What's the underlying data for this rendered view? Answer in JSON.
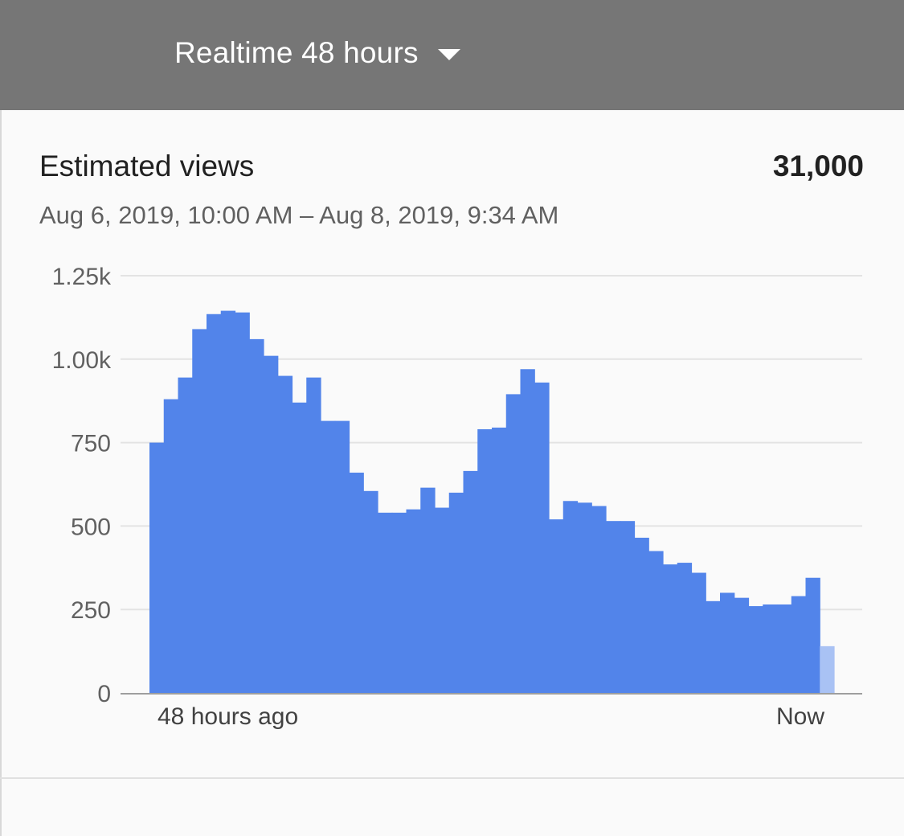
{
  "header": {
    "range_label": "Realtime 48 hours"
  },
  "card": {
    "title": "Estimated views",
    "total": "31,000",
    "date_range": "Aug 6, 2019, 10:00 AM – Aug 8, 2019, 9:34 AM"
  },
  "colors": {
    "header_bg": "#767676",
    "bar": "#5284ea",
    "bar_partial": "#a9c2f4",
    "grid": "#e3e3e3",
    "axis": "#9e9e9e"
  },
  "chart_data": {
    "type": "bar",
    "title": "",
    "ylim": [
      0,
      1250
    ],
    "yticks": [
      {
        "value": 0,
        "label": "0"
      },
      {
        "value": 250,
        "label": "250"
      },
      {
        "value": 500,
        "label": "500"
      },
      {
        "value": 750,
        "label": "750"
      },
      {
        "value": 1000,
        "label": "1.00k"
      },
      {
        "value": 1250,
        "label": "1.25k"
      }
    ],
    "x_start_label": "48 hours ago",
    "x_end_label": "Now",
    "grid": true,
    "values": [
      750,
      880,
      945,
      1090,
      1135,
      1145,
      1140,
      1060,
      1010,
      950,
      870,
      945,
      815,
      815,
      660,
      605,
      540,
      540,
      550,
      615,
      555,
      600,
      665,
      790,
      795,
      895,
      970,
      930,
      520,
      575,
      570,
      560,
      515,
      515,
      465,
      425,
      385,
      390,
      360,
      275,
      300,
      285,
      260,
      265,
      265,
      290,
      345,
      140
    ],
    "partial_last": true
  }
}
